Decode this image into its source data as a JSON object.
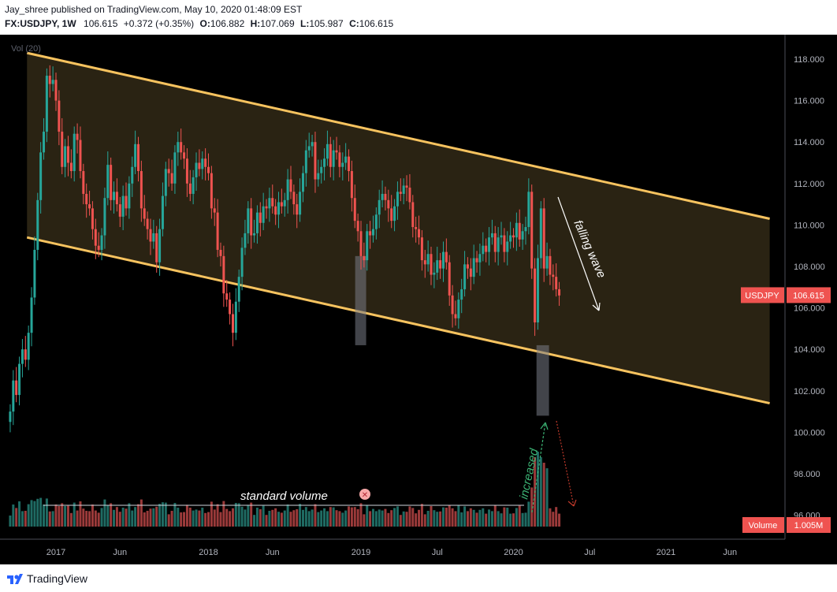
{
  "header": {
    "publisher_line": "Jay_shree published on TradingView.com, May 10, 2020 01:48:09 EST",
    "symbol_interval": "FX:USDJPY, 1W",
    "last": "106.615",
    "change": "+0.372 (+0.35%)",
    "o_label": "O:",
    "o_value": "106.882",
    "h_label": "H:",
    "h_value": "107.069",
    "l_label": "L:",
    "l_value": "105.987",
    "c_label": "C:",
    "c_value": "106.615"
  },
  "footer": {
    "brand": "TradingView",
    "icon": "tradingview-logo-icon"
  },
  "colors": {
    "up": "#26a69a",
    "down": "#ef5350",
    "channel": "#f7c35f",
    "price_tag": "#ef5350",
    "background": "#000000",
    "axis_text": "#b2b5be"
  },
  "chart_data": {
    "type": "candlestick",
    "title": "",
    "symbol": "FX:USDJPY",
    "interval": "1W",
    "ylim": [
      95.5,
      119.5
    ],
    "y_ticks": [
      "118.000",
      "116.000",
      "114.000",
      "112.000",
      "110.000",
      "108.000",
      "106.000",
      "104.000",
      "102.000",
      "100.000",
      "98.000",
      "96.000"
    ],
    "x_ticks": [
      {
        "label": "2017",
        "t": 2017.0
      },
      {
        "label": "Jun",
        "t": 2017.42
      },
      {
        "label": "2018",
        "t": 2018.0
      },
      {
        "label": "Jun",
        "t": 2018.42
      },
      {
        "label": "2019",
        "t": 2019.0
      },
      {
        "label": "Jul",
        "t": 2019.5
      },
      {
        "label": "2020",
        "t": 2020.0
      },
      {
        "label": "Jul",
        "t": 2020.5
      },
      {
        "label": "2021",
        "t": 2021.0
      },
      {
        "label": "Jun",
        "t": 2021.42
      }
    ],
    "x_range": [
      2016.7,
      2021.7
    ],
    "grid": false,
    "volume_label": "Vol (20)",
    "price_tag": {
      "label": "USDJPY",
      "value": "106.615",
      "price": 106.615
    },
    "volume_tag": {
      "label": "Volume",
      "value": "1.005M"
    },
    "closes": [
      [
        2016.7,
        101.0
      ],
      [
        2016.72,
        102.5
      ],
      [
        2016.74,
        101.8
      ],
      [
        2016.76,
        103.3
      ],
      [
        2016.78,
        104.0
      ],
      [
        2016.8,
        103.5
      ],
      [
        2016.82,
        104.8
      ],
      [
        2016.84,
        106.5
      ],
      [
        2016.86,
        108.8
      ],
      [
        2016.88,
        111.2
      ],
      [
        2016.9,
        113.5
      ],
      [
        2016.92,
        114.5
      ],
      [
        2016.94,
        117.2
      ],
      [
        2016.96,
        116.8
      ],
      [
        2016.98,
        117.0
      ],
      [
        2017.0,
        116.0
      ],
      [
        2017.02,
        114.5
      ],
      [
        2017.04,
        112.8
      ],
      [
        2017.06,
        113.8
      ],
      [
        2017.08,
        113.0
      ],
      [
        2017.1,
        112.6
      ],
      [
        2017.12,
        114.4
      ],
      [
        2017.14,
        114.1
      ],
      [
        2017.16,
        112.6
      ],
      [
        2017.18,
        111.5
      ],
      [
        2017.2,
        111.0
      ],
      [
        2017.22,
        110.8
      ],
      [
        2017.24,
        109.8
      ],
      [
        2017.26,
        109.0
      ],
      [
        2017.28,
        108.8
      ],
      [
        2017.3,
        109.5
      ],
      [
        2017.32,
        111.3
      ],
      [
        2017.34,
        112.9
      ],
      [
        2017.36,
        111.2
      ],
      [
        2017.38,
        111.6
      ],
      [
        2017.4,
        111.0
      ],
      [
        2017.42,
        110.4
      ],
      [
        2017.44,
        111.4
      ],
      [
        2017.46,
        110.8
      ],
      [
        2017.48,
        112.0
      ],
      [
        2017.5,
        112.8
      ],
      [
        2017.52,
        113.9
      ],
      [
        2017.54,
        112.6
      ],
      [
        2017.56,
        110.8
      ],
      [
        2017.58,
        110.3
      ],
      [
        2017.6,
        109.8
      ],
      [
        2017.62,
        109.2
      ],
      [
        2017.64,
        109.6
      ],
      [
        2017.66,
        108.2
      ],
      [
        2017.68,
        109.8
      ],
      [
        2017.7,
        111.4
      ],
      [
        2017.72,
        112.7
      ],
      [
        2017.74,
        112.5
      ],
      [
        2017.76,
        112.0
      ],
      [
        2017.78,
        113.5
      ],
      [
        2017.8,
        114.0
      ],
      [
        2017.82,
        113.5
      ],
      [
        2017.84,
        113.2
      ],
      [
        2017.86,
        112.0
      ],
      [
        2017.88,
        111.5
      ],
      [
        2017.9,
        112.3
      ],
      [
        2017.92,
        113.0
      ],
      [
        2017.94,
        112.7
      ],
      [
        2017.96,
        113.2
      ],
      [
        2017.98,
        112.8
      ],
      [
        2018.0,
        112.5
      ],
      [
        2018.02,
        110.8
      ],
      [
        2018.04,
        110.6
      ],
      [
        2018.06,
        108.8
      ],
      [
        2018.08,
        108.5
      ],
      [
        2018.1,
        106.7
      ],
      [
        2018.12,
        106.4
      ],
      [
        2018.14,
        105.7
      ],
      [
        2018.16,
        104.8
      ],
      [
        2018.18,
        106.3
      ],
      [
        2018.2,
        107.5
      ],
      [
        2018.22,
        108.9
      ],
      [
        2018.24,
        109.6
      ],
      [
        2018.26,
        110.8
      ],
      [
        2018.28,
        109.5
      ],
      [
        2018.3,
        109.6
      ],
      [
        2018.32,
        110.6
      ],
      [
        2018.34,
        110.1
      ],
      [
        2018.36,
        110.9
      ],
      [
        2018.38,
        110.8
      ],
      [
        2018.4,
        111.3
      ],
      [
        2018.42,
        110.9
      ],
      [
        2018.44,
        110.5
      ],
      [
        2018.46,
        111.1
      ],
      [
        2018.48,
        110.9
      ],
      [
        2018.5,
        111.2
      ],
      [
        2018.52,
        112.2
      ],
      [
        2018.54,
        111.6
      ],
      [
        2018.56,
        111.0
      ],
      [
        2018.58,
        110.5
      ],
      [
        2018.6,
        111.6
      ],
      [
        2018.62,
        112.5
      ],
      [
        2018.64,
        113.6
      ],
      [
        2018.66,
        113.8
      ],
      [
        2018.68,
        114.0
      ],
      [
        2018.7,
        112.2
      ],
      [
        2018.72,
        112.5
      ],
      [
        2018.74,
        112.8
      ],
      [
        2018.76,
        113.2
      ],
      [
        2018.78,
        113.9
      ],
      [
        2018.8,
        112.8
      ],
      [
        2018.82,
        113.6
      ],
      [
        2018.84,
        113.5
      ],
      [
        2018.86,
        112.8
      ],
      [
        2018.88,
        113.0
      ],
      [
        2018.9,
        113.3
      ],
      [
        2018.92,
        112.6
      ],
      [
        2018.94,
        111.3
      ],
      [
        2018.96,
        110.2
      ],
      [
        2018.98,
        109.7
      ],
      [
        2019.0,
        108.5
      ],
      [
        2019.02,
        108.3
      ],
      [
        2019.04,
        109.7
      ],
      [
        2019.06,
        109.5
      ],
      [
        2019.08,
        109.8
      ],
      [
        2019.1,
        110.5
      ],
      [
        2019.12,
        111.2
      ],
      [
        2019.14,
        111.5
      ],
      [
        2019.16,
        111.2
      ],
      [
        2019.18,
        110.8
      ],
      [
        2019.2,
        110.2
      ],
      [
        2019.22,
        110.9
      ],
      [
        2019.24,
        111.6
      ],
      [
        2019.26,
        111.5
      ],
      [
        2019.28,
        111.9
      ],
      [
        2019.3,
        111.8
      ],
      [
        2019.32,
        111.1
      ],
      [
        2019.34,
        109.9
      ],
      [
        2019.36,
        109.8
      ],
      [
        2019.38,
        109.4
      ],
      [
        2019.4,
        108.3
      ],
      [
        2019.42,
        108.1
      ],
      [
        2019.44,
        108.6
      ],
      [
        2019.46,
        107.6
      ],
      [
        2019.48,
        107.7
      ],
      [
        2019.5,
        108.3
      ],
      [
        2019.52,
        107.9
      ],
      [
        2019.54,
        108.7
      ],
      [
        2019.56,
        108.2
      ],
      [
        2019.58,
        106.6
      ],
      [
        2019.6,
        105.7
      ],
      [
        2019.62,
        105.5
      ],
      [
        2019.64,
        106.4
      ],
      [
        2019.66,
        106.9
      ],
      [
        2019.68,
        108.1
      ],
      [
        2019.7,
        107.9
      ],
      [
        2019.72,
        107.5
      ],
      [
        2019.74,
        108.4
      ],
      [
        2019.76,
        108.2
      ],
      [
        2019.78,
        108.6
      ],
      [
        2019.8,
        109.0
      ],
      [
        2019.82,
        108.7
      ],
      [
        2019.84,
        109.4
      ],
      [
        2019.86,
        109.6
      ],
      [
        2019.88,
        108.7
      ],
      [
        2019.9,
        109.4
      ],
      [
        2019.92,
        109.5
      ],
      [
        2019.94,
        108.7
      ],
      [
        2019.96,
        109.2
      ],
      [
        2019.98,
        109.5
      ],
      [
        2020.0,
        109.4
      ],
      [
        2020.02,
        110.1
      ],
      [
        2020.04,
        109.3
      ],
      [
        2020.06,
        109.7
      ],
      [
        2020.08,
        109.9
      ],
      [
        2020.1,
        111.6
      ],
      [
        2020.12,
        107.9
      ],
      [
        2020.14,
        105.3
      ],
      [
        2020.16,
        108.4
      ],
      [
        2020.18,
        110.8
      ],
      [
        2020.2,
        107.9
      ],
      [
        2020.22,
        108.5
      ],
      [
        2020.24,
        107.6
      ],
      [
        2020.26,
        107.5
      ],
      [
        2020.28,
        106.9
      ],
      [
        2020.3,
        106.6
      ]
    ],
    "volume_shape": "standard weekly volume with a spike in March 2020",
    "channel": {
      "upper": [
        [
          2016.81,
          118.3
        ],
        [
          2021.68,
          110.3
        ]
      ],
      "lower": [
        [
          2016.81,
          109.4
        ],
        [
          2021.68,
          101.4
        ]
      ]
    },
    "annotations": {
      "falling_wave": "falling wave",
      "increased": "increased",
      "standard_volume": "standard volume",
      "shaded_boxes": [
        {
          "t0": 2018.962,
          "t1": 2019.034,
          "y0": 104.2,
          "y1": 108.5
        },
        {
          "t0": 2020.151,
          "t1": 2020.233,
          "y0": 100.8,
          "y1": 104.2
        }
      ]
    }
  }
}
